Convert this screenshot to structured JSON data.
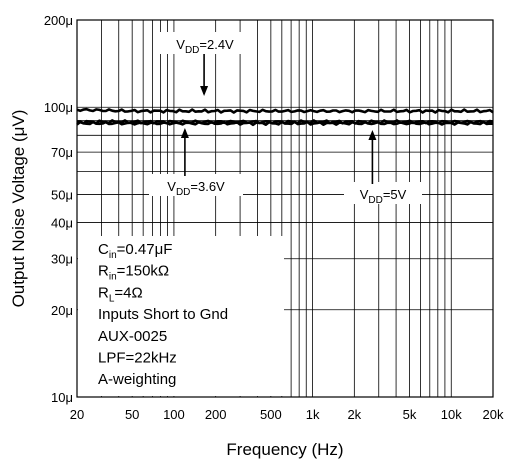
{
  "chart_data": {
    "type": "line",
    "title": "",
    "xlabel": "Frequency (Hz)",
    "ylabel": "Output Noise Voltage (μV)",
    "x_scale": "log",
    "y_scale": "log",
    "xlim": [
      20,
      20000
    ],
    "ylim": [
      10,
      200
    ],
    "grid": true,
    "x_ticks": [
      20,
      50,
      100,
      200,
      500,
      1000,
      2000,
      5000,
      10000,
      20000
    ],
    "x_tick_labels": [
      "20",
      "50",
      "100",
      "200",
      "500",
      "1k",
      "2k",
      "5k",
      "10k",
      "20k"
    ],
    "y_ticks": [
      10,
      20,
      30,
      40,
      50,
      70,
      100,
      200
    ],
    "y_tick_labels": [
      "10μ",
      "20μ",
      "30μ",
      "40μ",
      "50μ",
      "70μ",
      "100μ",
      "200μ"
    ],
    "series": [
      {
        "name": "VDD=2.4V",
        "x": [
          20,
          50,
          100,
          200,
          500,
          1000,
          2000,
          5000,
          10000,
          20000
        ],
        "y": [
          98,
          97,
          97,
          97,
          97,
          97,
          97,
          97,
          97,
          97
        ]
      },
      {
        "name": "VDD=3.6V",
        "x": [
          20,
          50,
          100,
          200,
          500,
          1000,
          2000,
          5000,
          10000,
          20000
        ],
        "y": [
          88,
          88,
          88,
          88,
          88,
          88,
          88,
          88,
          88,
          88
        ]
      },
      {
        "name": "VDD=5V",
        "x": [
          20,
          50,
          100,
          200,
          500,
          1000,
          2000,
          5000,
          10000,
          20000
        ],
        "y": [
          89,
          89,
          89,
          89,
          89,
          89,
          89,
          89,
          89,
          89
        ]
      }
    ],
    "annotations": [
      {
        "base": "V",
        "sub": "DD",
        "value": "=2.4V",
        "arrow_to_x": 165,
        "series": "VDD=2.4V"
      },
      {
        "base": "V",
        "sub": "DD",
        "value": "=3.6V",
        "arrow_to_x": 120,
        "series": "VDD=3.6V"
      },
      {
        "base": "V",
        "sub": "DD",
        "value": "=5V",
        "arrow_to_x": 2700,
        "series": "VDD=5V"
      }
    ],
    "conditions": [
      {
        "base": "C",
        "sub": "in",
        "value": "=0.47μF"
      },
      {
        "base": "R",
        "sub": "in",
        "value": "=150kΩ"
      },
      {
        "base": "R",
        "sub": "L",
        "value": "=4Ω"
      },
      {
        "base": "Inputs Short to Gnd",
        "sub": "",
        "value": ""
      },
      {
        "base": "AUX-0025",
        "sub": "",
        "value": ""
      },
      {
        "base": "LPF=22kHz",
        "sub": "",
        "value": ""
      },
      {
        "base": "A-weighting",
        "sub": "",
        "value": ""
      }
    ]
  }
}
